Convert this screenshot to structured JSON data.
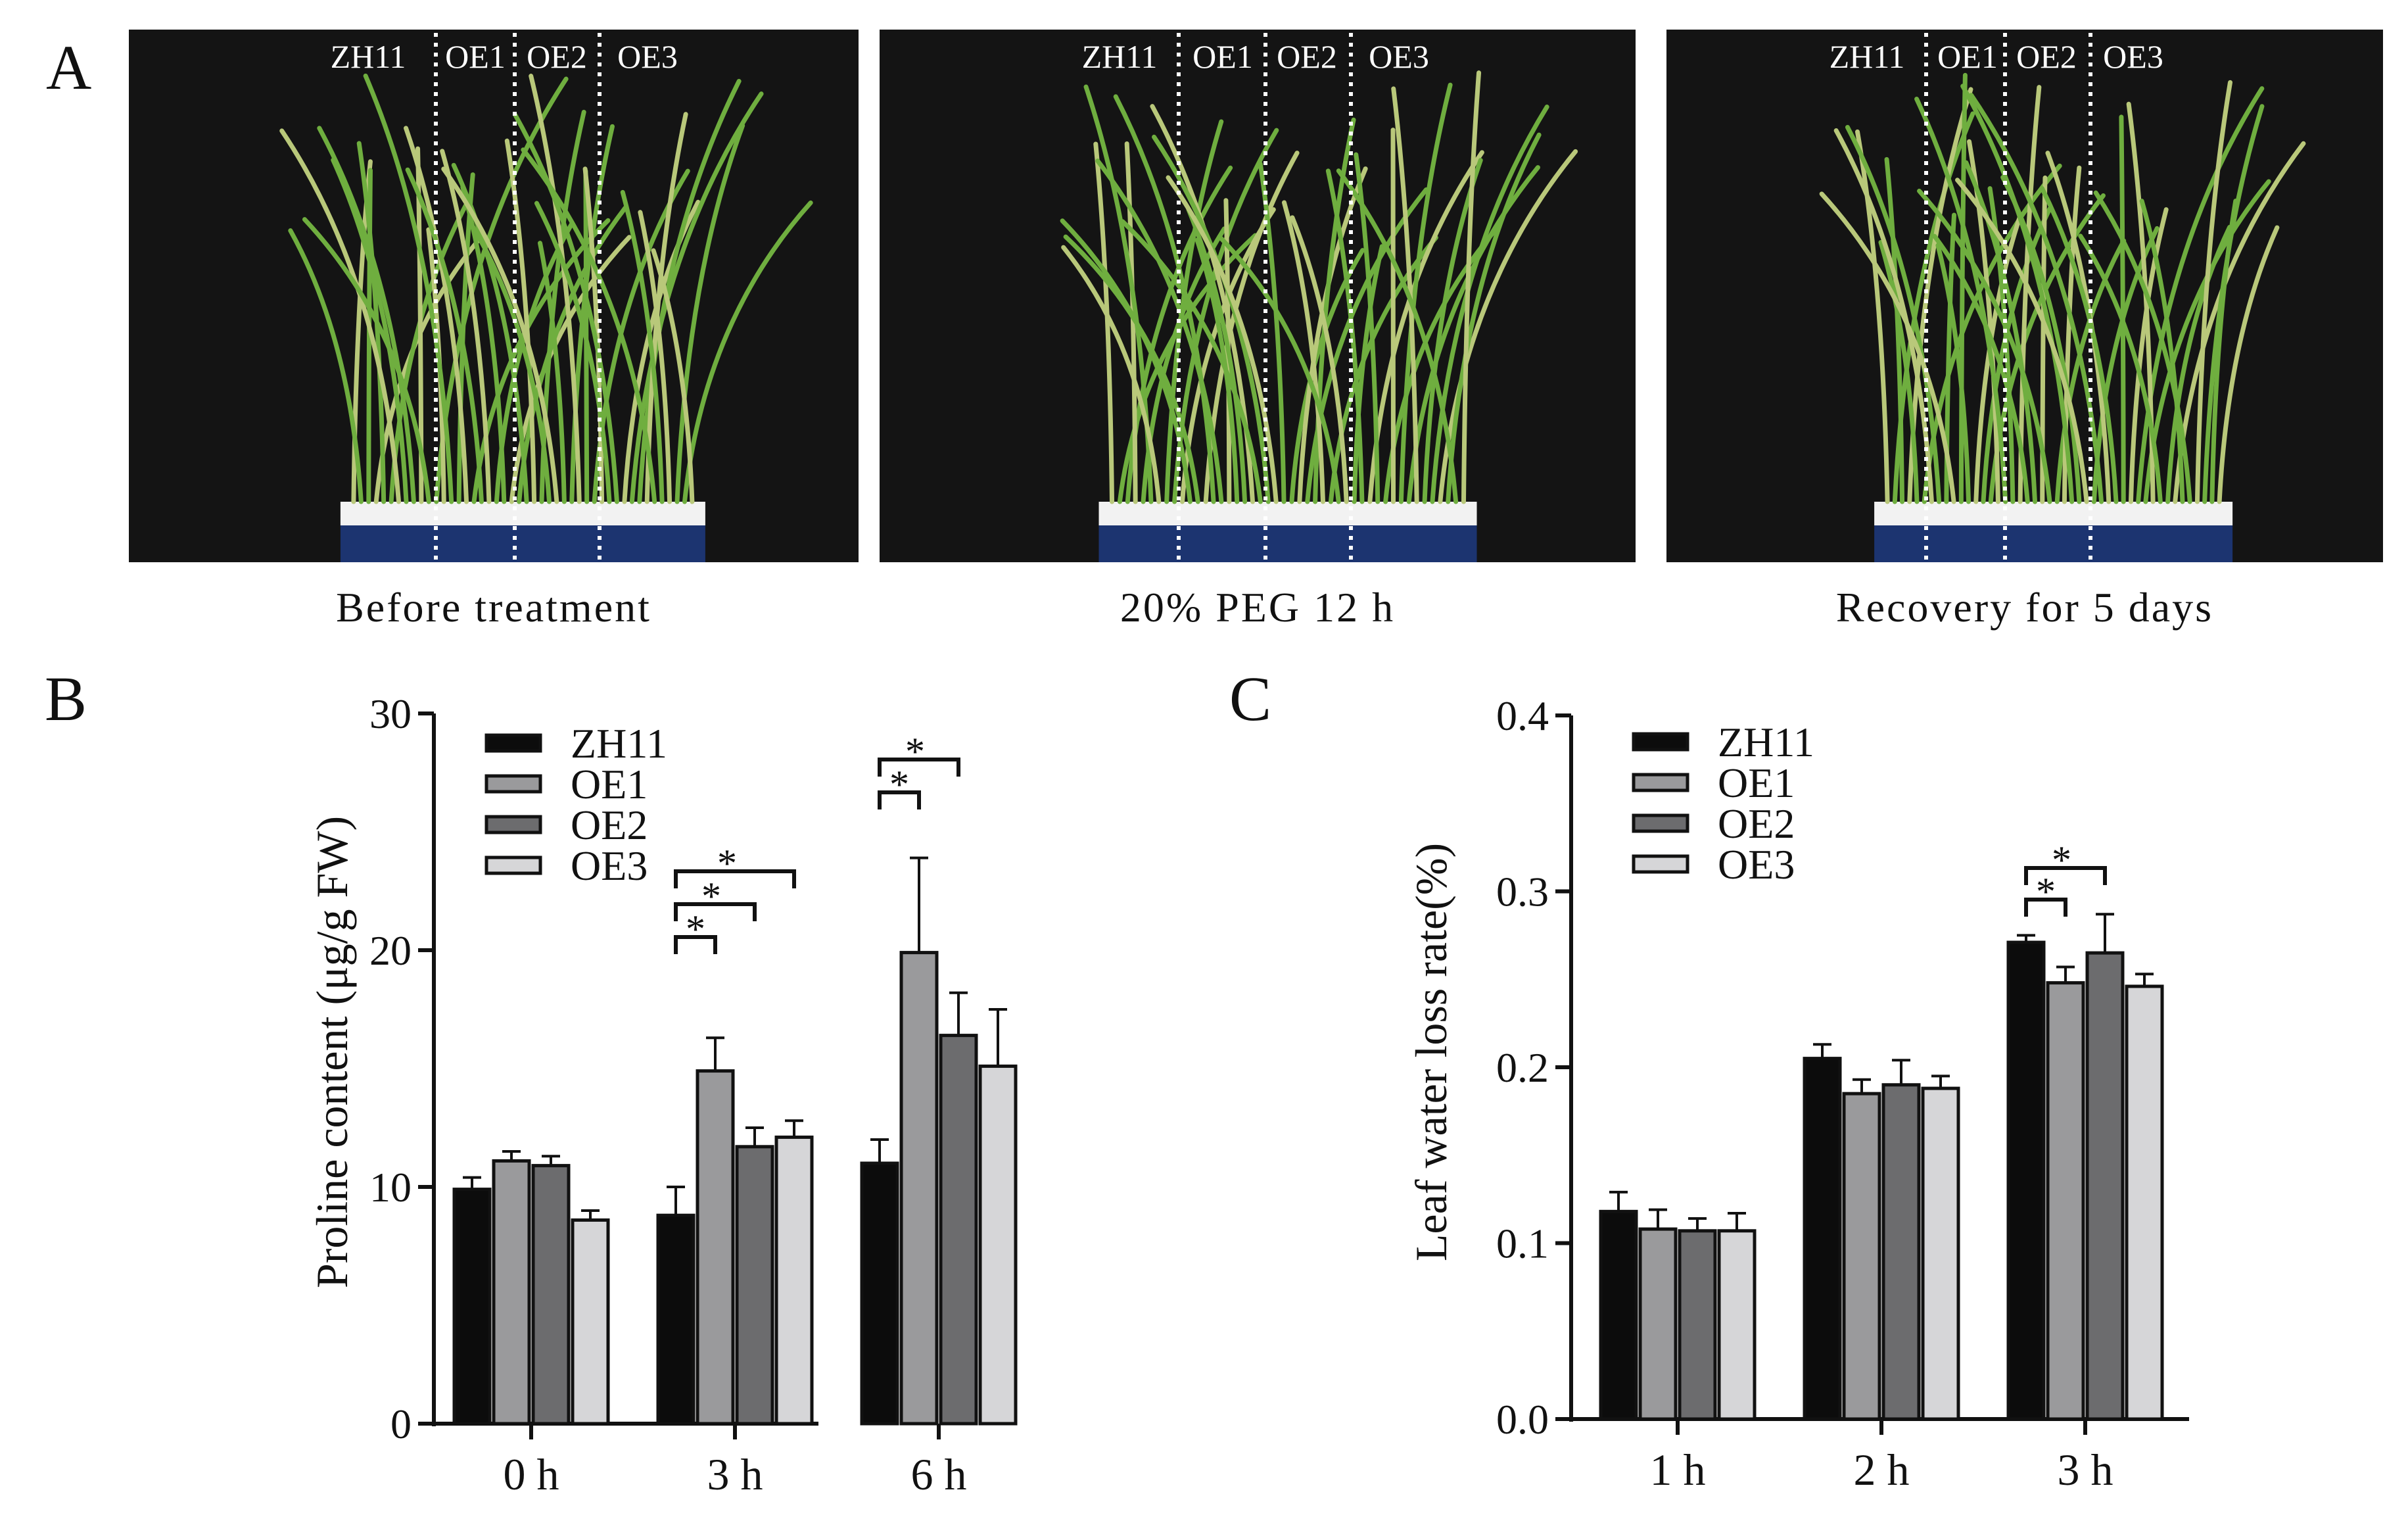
{
  "colors": {
    "ZH11": "#0c0c0c",
    "OE1": "#9a9a9c",
    "OE2": "#6c6c6e",
    "OE3": "#d6d6d8",
    "photo_bg": "#141414",
    "leaf": "#6fae3f",
    "leaf_light": "#b9c87a",
    "pot_blue": "#1c3470",
    "pot_white": "#f2f2f2"
  },
  "panel_a": {
    "label": "A",
    "genotype_labels": [
      "ZH11",
      "OE1",
      "OE2",
      "OE3"
    ],
    "photos": [
      {
        "caption": "Before treatment"
      },
      {
        "caption": "20% PEG 12 h"
      },
      {
        "caption": "Recovery for 5 days"
      }
    ]
  },
  "chart_data": [
    {
      "panel": "B",
      "type": "bar",
      "ylabel": "Proline content (μg/g FW)",
      "xlabel": "",
      "ylim": [
        0,
        30
      ],
      "yticks": [
        0,
        10,
        20,
        30
      ],
      "categories": [
        "0 h",
        "3 h",
        "6  h"
      ],
      "series": [
        {
          "name": "ZH11",
          "values": [
            9.9,
            8.8,
            11.0
          ],
          "errors": [
            0.5,
            1.2,
            1.0
          ]
        },
        {
          "name": "OE1",
          "values": [
            11.1,
            14.9,
            19.9
          ],
          "errors": [
            0.4,
            1.4,
            4.0
          ]
        },
        {
          "name": "OE2",
          "values": [
            10.9,
            11.7,
            16.4
          ],
          "errors": [
            0.4,
            0.8,
            1.8
          ]
        },
        {
          "name": "OE3",
          "values": [
            8.6,
            12.1,
            15.1
          ],
          "errors": [
            0.4,
            0.7,
            2.4
          ]
        }
      ],
      "legend_position": "top-left",
      "annotations": [
        {
          "category": 1,
          "from": 0,
          "to": 1,
          "label": "*",
          "level": 0
        },
        {
          "category": 1,
          "from": 0,
          "to": 2,
          "label": "*",
          "level": 1
        },
        {
          "category": 1,
          "from": 0,
          "to": 3,
          "label": "*",
          "level": 2
        },
        {
          "category": 2,
          "from": 0,
          "to": 1,
          "label": "*",
          "level": 0
        },
        {
          "category": 2,
          "from": 0,
          "to": 2,
          "label": "*",
          "level": 1
        }
      ]
    },
    {
      "panel": "C",
      "type": "bar",
      "ylabel": "Leaf water loss rate(%)",
      "xlabel": "",
      "ylim": [
        0.0,
        0.4
      ],
      "yticks": [
        "0.0",
        "0.1",
        "0.2",
        "0.3",
        "0.4"
      ],
      "categories": [
        "1 h",
        "2 h",
        "3 h"
      ],
      "series": [
        {
          "name": "ZH11",
          "values": [
            0.118,
            0.205,
            0.271
          ],
          "errors": [
            0.011,
            0.008,
            0.004
          ]
        },
        {
          "name": "OE1",
          "values": [
            0.108,
            0.185,
            0.248
          ],
          "errors": [
            0.011,
            0.008,
            0.009
          ]
        },
        {
          "name": "OE2",
          "values": [
            0.107,
            0.19,
            0.265
          ],
          "errors": [
            0.007,
            0.014,
            0.022
          ]
        },
        {
          "name": "OE3",
          "values": [
            0.107,
            0.188,
            0.246
          ],
          "errors": [
            0.01,
            0.007,
            0.007
          ]
        }
      ],
      "legend_position": "top-left",
      "annotations": [
        {
          "category": 2,
          "from": 0,
          "to": 1,
          "label": "*",
          "level": 0
        },
        {
          "category": 2,
          "from": 0,
          "to": 2,
          "label": "*",
          "level": 1
        }
      ]
    }
  ]
}
